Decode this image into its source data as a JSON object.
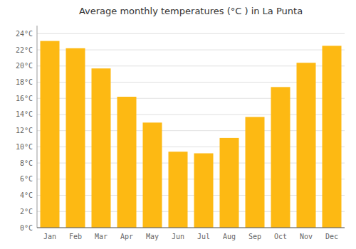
{
  "chart_data": {
    "type": "bar",
    "title": "Average monthly temperatures (°C ) in La Punta",
    "categories": [
      "Jan",
      "Feb",
      "Mar",
      "Apr",
      "May",
      "Jun",
      "Jul",
      "Aug",
      "Sep",
      "Oct",
      "Nov",
      "Dec"
    ],
    "values": [
      23.1,
      22.2,
      19.7,
      16.2,
      13.0,
      9.4,
      9.2,
      11.1,
      13.7,
      17.4,
      20.4,
      22.5
    ],
    "color": "#FDB913",
    "ylim": [
      0,
      25
    ],
    "yticks": [
      {
        "value": 0,
        "label": "0°C"
      },
      {
        "value": 2,
        "label": "2°C"
      },
      {
        "value": 4,
        "label": "4°C"
      },
      {
        "value": 6,
        "label": "6°C"
      },
      {
        "value": 8,
        "label": "8°C"
      },
      {
        "value": 10,
        "label": "10°C"
      },
      {
        "value": 12,
        "label": "12°C"
      },
      {
        "value": 14,
        "label": "14°C"
      },
      {
        "value": 16,
        "label": "16°C"
      },
      {
        "value": 18,
        "label": "18°C"
      },
      {
        "value": 20,
        "label": "20°C"
      },
      {
        "value": 22,
        "label": "22°C"
      },
      {
        "value": 24,
        "label": "24°C"
      }
    ],
    "grid": true
  }
}
